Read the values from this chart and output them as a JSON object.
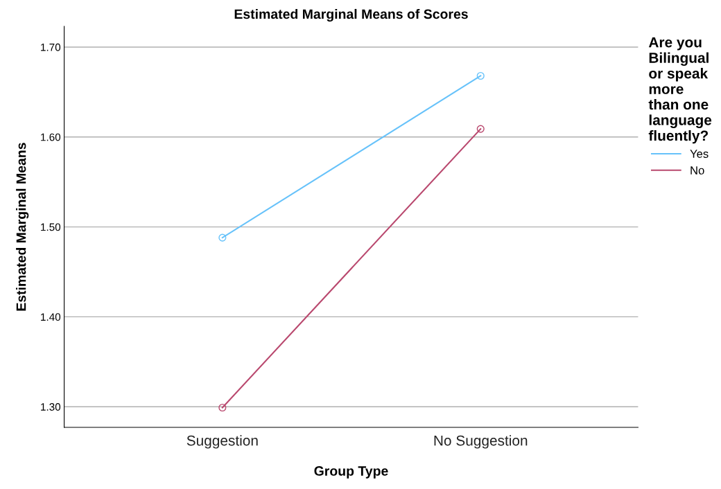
{
  "chart_data": {
    "type": "line",
    "title": "Estimated Marginal Means of Scores",
    "xlabel": "Group Type",
    "ylabel": "Estimated Marginal Means",
    "legend_title": "Are you\nBilingual\nor speak\nmore\nthan one\nlanguage\nfluently?",
    "categories": [
      "Suggestion",
      "No Suggestion"
    ],
    "series": [
      {
        "name": "Yes",
        "color": "#66c2fa",
        "values": [
          1.488,
          1.668
        ]
      },
      {
        "name": "No",
        "color": "#b9486e",
        "values": [
          1.299,
          1.609
        ]
      }
    ],
    "ylim": [
      1.277,
      1.723
    ],
    "yticks": [
      {
        "value": 1.3,
        "label": "1.30"
      },
      {
        "value": 1.4,
        "label": "1.40"
      },
      {
        "value": 1.5,
        "label": "1.50"
      },
      {
        "value": 1.6,
        "label": "1.60"
      },
      {
        "value": 1.7,
        "label": "1.70"
      }
    ],
    "grid": "y",
    "legend": "top right",
    "marker": "circle",
    "line_style": "solid"
  }
}
